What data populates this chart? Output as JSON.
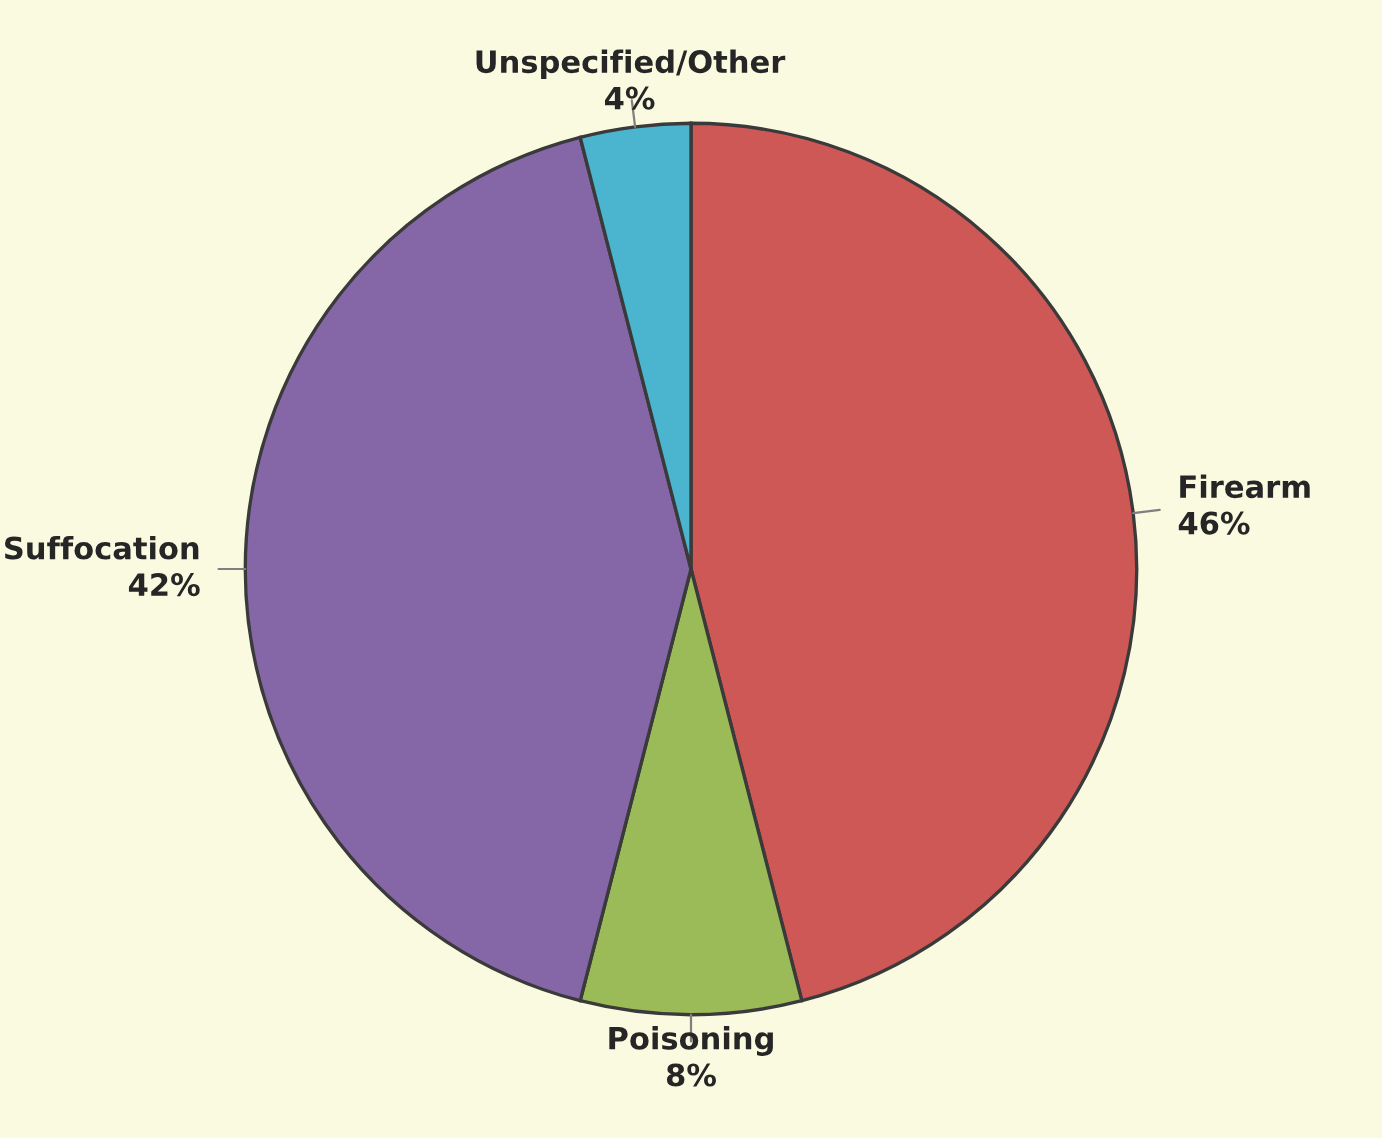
{
  "chart_data": {
    "type": "pie",
    "categories": [
      "Firearm",
      "Poisoning",
      "Suffocation",
      "Unspecified/Other"
    ],
    "values": [
      46,
      8,
      42,
      4
    ],
    "value_labels": [
      "46%",
      "8%",
      "42%",
      "4%"
    ],
    "colors": [
      "#cd5855",
      "#9bbb59",
      "#8567a8",
      "#4bb4cf"
    ],
    "legend": false
  }
}
